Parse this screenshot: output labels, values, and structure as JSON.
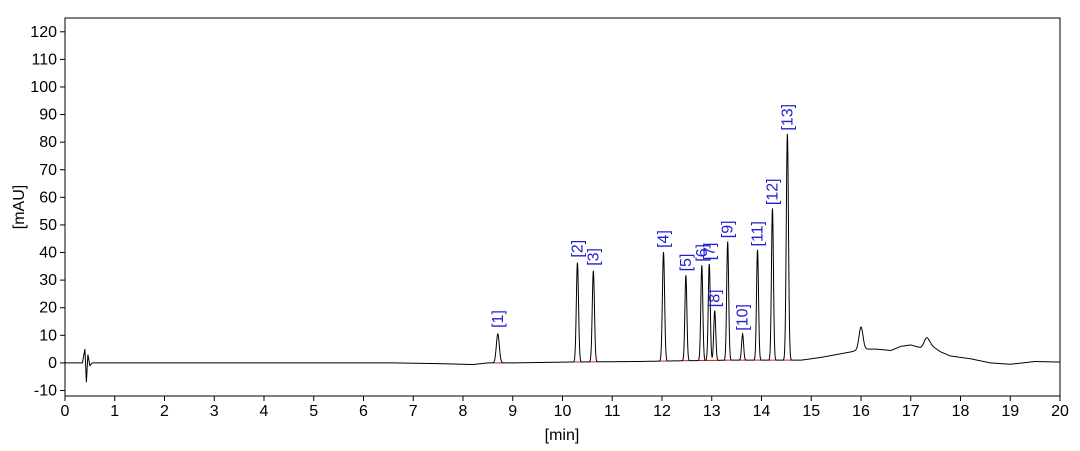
{
  "chart_data": {
    "type": "line",
    "xlabel": "[min]",
    "ylabel": "[mAU]",
    "xlim": [
      0,
      20
    ],
    "ylim": [
      -12,
      125
    ],
    "xticks": [
      0,
      1,
      2,
      3,
      4,
      5,
      6,
      7,
      8,
      9,
      10,
      11,
      12,
      13,
      14,
      15,
      16,
      17,
      18,
      19,
      20
    ],
    "yticks": [
      -10,
      0,
      10,
      20,
      30,
      40,
      50,
      60,
      70,
      80,
      90,
      100,
      110,
      120
    ],
    "grid": false,
    "colors": {
      "trace": "#000000",
      "baseline": "#d42020",
      "peak_label": "#1f1fd0",
      "frame": "#000000"
    },
    "baseline_points": [
      [
        0,
        0
      ],
      [
        0.35,
        0
      ],
      [
        0.4,
        5
      ],
      [
        0.43,
        -7
      ],
      [
        0.46,
        3
      ],
      [
        0.5,
        -1
      ],
      [
        0.55,
        0
      ],
      [
        6.6,
        0
      ],
      [
        7.6,
        -0.3
      ],
      [
        8.2,
        -0.6
      ],
      [
        8.5,
        0
      ],
      [
        9.0,
        0
      ],
      [
        10.1,
        0.3
      ],
      [
        11.5,
        0.5
      ],
      [
        12.5,
        0.8
      ],
      [
        13.5,
        1.0
      ],
      [
        14.8,
        1.0
      ],
      [
        15.2,
        2
      ],
      [
        15.5,
        3
      ],
      [
        15.8,
        4
      ],
      [
        16.0,
        5
      ],
      [
        16.3,
        5
      ],
      [
        16.6,
        4.5
      ],
      [
        16.8,
        6
      ],
      [
        17.0,
        6.5
      ],
      [
        17.2,
        5.5
      ],
      [
        17.4,
        6.5
      ],
      [
        17.6,
        4
      ],
      [
        17.8,
        2.5
      ],
      [
        18.0,
        2
      ],
      [
        18.2,
        1.5
      ],
      [
        18.6,
        0
      ],
      [
        19.0,
        -0.5
      ],
      [
        19.5,
        0.5
      ],
      [
        20.0,
        0.3
      ]
    ],
    "peaks": [
      {
        "label": "[1]",
        "rt": 8.7,
        "height": 10.5,
        "width": 0.03
      },
      {
        "label": "[2]",
        "rt": 10.3,
        "height": 36.0,
        "width": 0.022
      },
      {
        "label": "[3]",
        "rt": 10.62,
        "height": 33.0,
        "width": 0.022
      },
      {
        "label": "[4]",
        "rt": 12.03,
        "height": 39.5,
        "width": 0.022
      },
      {
        "label": "[5]",
        "rt": 12.48,
        "height": 31.0,
        "width": 0.02
      },
      {
        "label": "[6]",
        "rt": 12.8,
        "height": 34.5,
        "width": 0.02
      },
      {
        "label": "[7]",
        "rt": 12.95,
        "height": 35.0,
        "width": 0.02
      },
      {
        "label": "[8]",
        "rt": 13.06,
        "height": 18.0,
        "width": 0.02
      },
      {
        "label": "[9]",
        "rt": 13.32,
        "height": 43.0,
        "width": 0.02
      },
      {
        "label": "[10]",
        "rt": 13.62,
        "height": 9.5,
        "width": 0.02
      },
      {
        "label": "[11]",
        "rt": 13.92,
        "height": 40.0,
        "width": 0.02
      },
      {
        "label": "[12]",
        "rt": 14.22,
        "height": 55.0,
        "width": 0.02
      },
      {
        "label": "[13]",
        "rt": 14.52,
        "height": 82.0,
        "width": 0.022
      }
    ],
    "extra_peaks": [
      {
        "rt": 16.0,
        "height": 8.0,
        "width": 0.04
      },
      {
        "rt": 17.32,
        "height": 3.0,
        "width": 0.05
      }
    ]
  }
}
